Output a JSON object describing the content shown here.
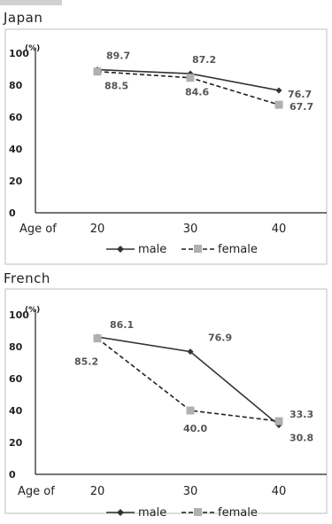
{
  "chart_data": [
    {
      "type": "line",
      "title": "Japan",
      "xlabel": "Age of",
      "ylabel": "(%)",
      "ylim": [
        0,
        100
      ],
      "yticks": [
        "0",
        "20",
        "40",
        "60",
        "80",
        "100"
      ],
      "categories": [
        "20",
        "30",
        "40"
      ],
      "series": [
        {
          "name": "male",
          "values": [
            89.7,
            87.2,
            76.7
          ],
          "labels": [
            "89.7",
            "87.2",
            "76.7"
          ],
          "color": "#333333",
          "marker": "diamond",
          "dash": "solid"
        },
        {
          "name": "female",
          "values": [
            88.5,
            84.6,
            67.7
          ],
          "labels": [
            "88.5",
            "84.6",
            "67.7"
          ],
          "color": "#b0b0b0",
          "marker": "square",
          "dash": "dashed"
        }
      ],
      "legend_placement": "bottom",
      "grid": false
    },
    {
      "type": "line",
      "title": "French",
      "xlabel": "Age of",
      "ylabel": "(%)",
      "ylim": [
        0,
        100
      ],
      "yticks": [
        "0",
        "20",
        "40",
        "60",
        "80",
        "100"
      ],
      "categories": [
        "20",
        "30",
        "40"
      ],
      "series": [
        {
          "name": "male",
          "values": [
            86.1,
            76.9,
            30.8
          ],
          "labels": [
            "86.1",
            "76.9",
            "30.8"
          ],
          "color": "#333333",
          "marker": "diamond",
          "dash": "solid"
        },
        {
          "name": "female",
          "values": [
            85.2,
            40.0,
            33.3
          ],
          "labels": [
            "85.2",
            "40.0",
            "33.3"
          ],
          "color": "#b0b0b0",
          "marker": "square",
          "dash": "dashed"
        }
      ],
      "legend_placement": "bottom",
      "grid": false
    }
  ]
}
